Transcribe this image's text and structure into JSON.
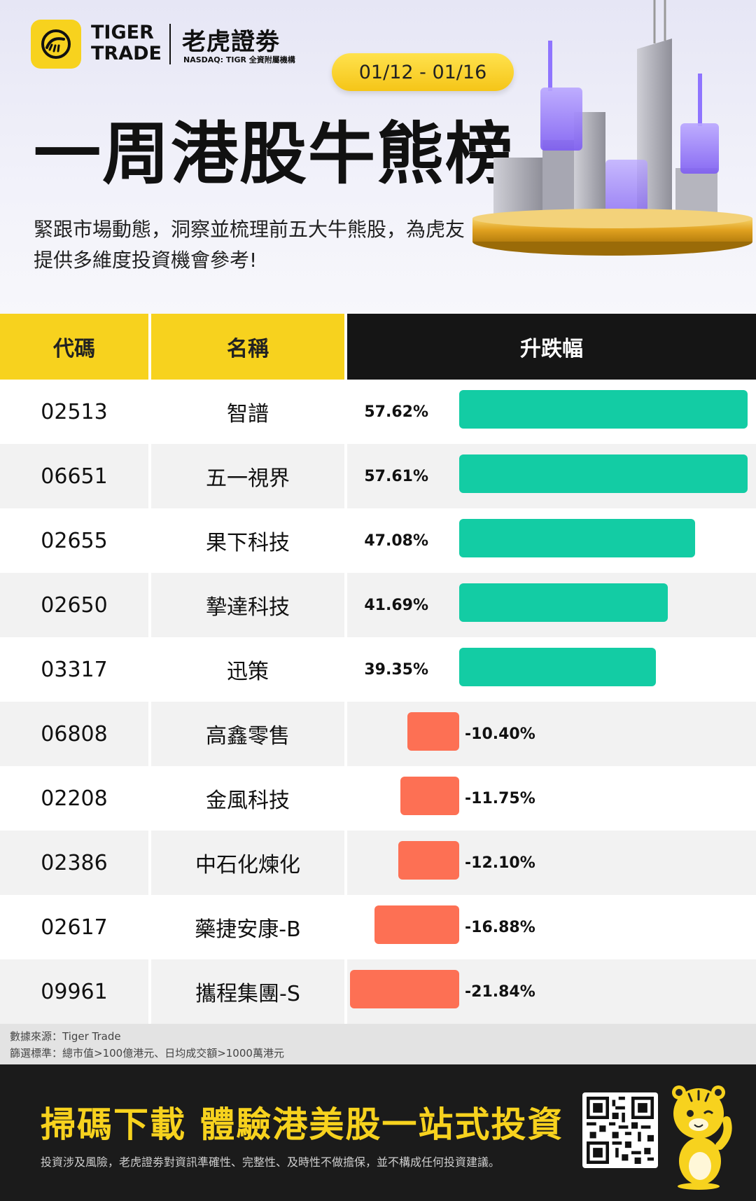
{
  "brand": {
    "name_en_line1": "TIGER",
    "name_en_line2": "TRADE",
    "name_cn": "老虎證劵",
    "sub": "NASDAQ: TIGR 全資附屬機構"
  },
  "date_range": "01/12 - 01/16",
  "title": "一周港股牛熊榜",
  "subtitle": "緊跟市場動態，洞察並梳理前五大牛熊股，為虎友提供多維度投資機會參考!",
  "table": {
    "headers": {
      "code": "代碼",
      "name": "名稱",
      "change": "升跌幅"
    },
    "rows": [
      {
        "code": "02513",
        "name": "智譜",
        "change": 57.62,
        "change_label": "57.62%"
      },
      {
        "code": "06651",
        "name": "五一視界",
        "change": 57.61,
        "change_label": "57.61%"
      },
      {
        "code": "02655",
        "name": "果下科技",
        "change": 47.08,
        "change_label": "47.08%"
      },
      {
        "code": "02650",
        "name": "摯達科技",
        "change": 41.69,
        "change_label": "41.69%"
      },
      {
        "code": "03317",
        "name": "迅策",
        "change": 39.35,
        "change_label": "39.35%"
      },
      {
        "code": "06808",
        "name": "高鑫零售",
        "change": -10.4,
        "change_label": "-10.40%"
      },
      {
        "code": "02208",
        "name": "金風科技",
        "change": -11.75,
        "change_label": "-11.75%"
      },
      {
        "code": "02386",
        "name": "中石化煉化",
        "change": -12.1,
        "change_label": "-12.10%"
      },
      {
        "code": "02617",
        "name": "藥捷安康-B",
        "change": -16.88,
        "change_label": "-16.88%"
      },
      {
        "code": "09961",
        "name": "攜程集團-S",
        "change": -21.84,
        "change_label": "-21.84%"
      }
    ]
  },
  "source": {
    "line1": "數據來源：Tiger Trade",
    "line2": "篩選標準：總市值>100億港元、日均成交額>1000萬港元"
  },
  "footer": {
    "cta": "掃碼下載 體驗港美股一站式投資",
    "disclaimer": "投資涉及風險，老虎證劵對資訊準確性、完整性、及時性不做擔保，並不構成任何投資建議。"
  },
  "colors": {
    "brand_yellow": "#f7d21e",
    "positive": "#13cca4",
    "negative": "#fd7054",
    "header_dark": "#151515"
  },
  "icons": [
    "tiger-logo-icon",
    "qr-code",
    "tiger-mascot"
  ]
}
